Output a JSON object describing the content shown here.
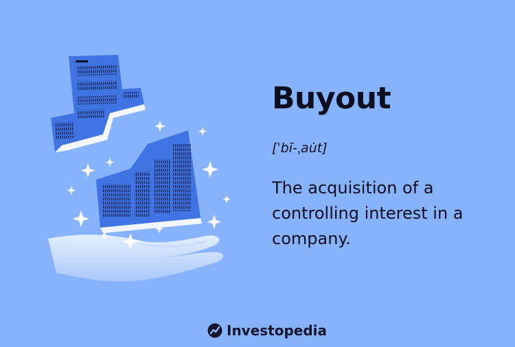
{
  "term": {
    "title": "Buyout",
    "pronunciation": "[ˈbī-ˌau̇t]",
    "definition": "The acquisition of a controlling interest in a company."
  },
  "brand": {
    "name": "Investopedia",
    "icon": "investopedia-logo-icon"
  },
  "colors": {
    "background": "#86b3fc",
    "building": "#3f74e2",
    "text": "#0b0e1e"
  }
}
